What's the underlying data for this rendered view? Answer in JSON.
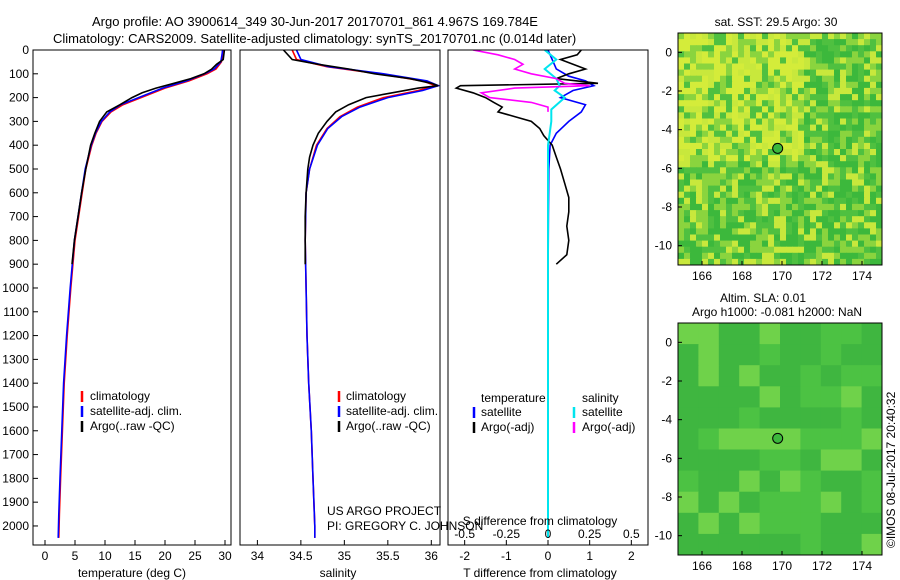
{
  "header": {
    "line1": "Argo profile: AO 3900614_349 30-Jun-2017 20170701_861 4.967S 169.784E",
    "line2": "Climatology: CARS2009. Satellite-adjusted climatology: synTS_20170701.nc (0.014d later)"
  },
  "colors": {
    "climatology": "#ff0000",
    "satellite": "#0000ff",
    "argo": "#000000",
    "argo_salinity": "#ff00ff",
    "satellite_salinity": "#00e5ee",
    "map_green": "#3cb83c",
    "map_yellow": "#c8e83c"
  },
  "chart_data": [
    {
      "type": "line",
      "panel": "temperature",
      "xlabel": "temperature (deg C)",
      "ylim": [
        2080,
        0
      ],
      "xlim": [
        -2,
        31
      ],
      "xticks": [
        "0",
        "5",
        "10",
        "15",
        "20",
        "25",
        "30"
      ],
      "yticks": [
        "0",
        "100",
        "200",
        "300",
        "400",
        "500",
        "600",
        "700",
        "800",
        "900",
        "1000",
        "1100",
        "1200",
        "1300",
        "1400",
        "1500",
        "1600",
        "1700",
        "1800",
        "1900",
        "2000"
      ],
      "legend": [
        "climatology",
        "satellite-adj. clim.",
        "Argo(..raw -QC)"
      ],
      "series": [
        {
          "name": "climatology",
          "depth": [
            0,
            20,
            50,
            80,
            100,
            130,
            160,
            200,
            230,
            260,
            300,
            350,
            400,
            500,
            600,
            700,
            800,
            1000,
            1200,
            1400,
            1600,
            1800,
            1950,
            2050
          ],
          "values": [
            29.6,
            29.6,
            29.4,
            28.5,
            27,
            24,
            20,
            16,
            13,
            11,
            9.5,
            8.5,
            7.8,
            6.8,
            6.2,
            5.6,
            5.0,
            4.3,
            3.7,
            3.2,
            2.9,
            2.6,
            2.4,
            2.3
          ]
        },
        {
          "name": "satellite-adj. clim.",
          "depth": [
            0,
            20,
            50,
            80,
            100,
            130,
            160,
            200,
            230,
            260,
            300,
            350,
            400,
            500,
            600,
            700,
            800,
            1000,
            1200,
            1400,
            1600,
            1800,
            1950,
            2050
          ],
          "values": [
            29.6,
            29.5,
            29.3,
            28.2,
            26.6,
            23.6,
            19.6,
            15.6,
            12.6,
            10.8,
            9.4,
            8.4,
            7.7,
            6.7,
            6.1,
            5.5,
            4.9,
            4.2,
            3.6,
            3.1,
            2.8,
            2.5,
            2.3,
            2.2
          ]
        },
        {
          "name": "Argo(..raw -QC)",
          "depth": [
            0,
            20,
            40,
            60,
            80,
            100,
            120,
            140,
            160,
            180,
            200,
            230,
            260,
            300,
            350,
            400,
            450,
            500,
            600,
            700,
            800,
            900
          ],
          "values": [
            29.9,
            29.8,
            29.7,
            28.6,
            27.8,
            26.5,
            24.3,
            21.5,
            18.5,
            16.2,
            14.5,
            12.5,
            10.3,
            9.1,
            8.3,
            7.6,
            7.2,
            6.8,
            6.1,
            5.5,
            4.9,
            4.5
          ]
        }
      ]
    },
    {
      "type": "line",
      "panel": "salinity",
      "xlabel": "salinity",
      "ylim": [
        2080,
        0
      ],
      "xlim": [
        33.8,
        36.1
      ],
      "xticks": [
        "34",
        "34.5",
        "35",
        "35.5",
        "36"
      ],
      "legend": [
        "climatology",
        "satellite-adj. clim.",
        "Argo(..raw -QC)"
      ],
      "annotation": [
        "US ARGO PROJECT",
        "PI: GREGORY C. JOHNSON"
      ],
      "series": [
        {
          "name": "climatology",
          "depth": [
            0,
            40,
            70,
            100,
            130,
            150,
            170,
            200,
            240,
            280,
            330,
            400,
            500,
            600,
            800,
            1000,
            1200,
            1400,
            1600,
            1800,
            2000,
            2050
          ],
          "values": [
            34.4,
            34.45,
            34.8,
            35.4,
            35.9,
            36.05,
            35.85,
            35.45,
            35.15,
            34.95,
            34.8,
            34.68,
            34.6,
            34.56,
            34.55,
            34.56,
            34.57,
            34.59,
            34.62,
            34.64,
            34.66,
            34.66
          ]
        },
        {
          "name": "satellite-adj. clim.",
          "depth": [
            0,
            40,
            70,
            100,
            130,
            150,
            170,
            200,
            240,
            280,
            330,
            400,
            500,
            600,
            800,
            1000,
            1200,
            1400,
            1600,
            1800,
            2000,
            2050
          ],
          "values": [
            34.45,
            34.5,
            34.82,
            35.45,
            35.95,
            36.08,
            35.9,
            35.5,
            35.18,
            34.97,
            34.81,
            34.69,
            34.6,
            34.56,
            34.55,
            34.56,
            34.57,
            34.59,
            34.62,
            34.64,
            34.66,
            34.66
          ]
        },
        {
          "name": "Argo(..raw -QC)",
          "depth": [
            0,
            40,
            60,
            80,
            100,
            120,
            140,
            150,
            160,
            180,
            200,
            230,
            260,
            300,
            350,
            400,
            450,
            500,
            600,
            700,
            800,
            900
          ],
          "values": [
            34.3,
            34.4,
            34.7,
            35.05,
            35.35,
            35.75,
            36.0,
            36.08,
            35.85,
            35.55,
            35.25,
            35.05,
            34.9,
            34.8,
            34.7,
            34.64,
            34.6,
            34.58,
            34.56,
            34.55,
            34.55,
            34.55
          ]
        }
      ]
    },
    {
      "type": "line",
      "panel": "differences",
      "xlabel": "T difference from climatology",
      "xlabel_top": "S difference from climatology",
      "ylim": [
        2080,
        0
      ],
      "xlim": [
        -2.4,
        2.4
      ],
      "xticks": [
        "-2",
        "-1",
        "0",
        "1",
        "2"
      ],
      "xticks_top": [
        "-0.5",
        "-0.25",
        "0",
        "0.25",
        "0.5"
      ],
      "legend": {
        "temperature": [
          "satellite",
          "Argo(-adj)"
        ],
        "salinity": [
          "satellite",
          "Argo(-adj)"
        ]
      },
      "legend_titles": [
        "temperature",
        "salinity"
      ],
      "series": [
        {
          "name": "temperature satellite",
          "depth": [
            0,
            40,
            80,
            110,
            130,
            150,
            170,
            200,
            230,
            260,
            300,
            350,
            400,
            500,
            700,
            1000,
            1300,
            1600,
            2050
          ],
          "values": [
            0,
            0.1,
            0.2,
            0.5,
            0.9,
            1.1,
            0.6,
            0.3,
            0.9,
            0.8,
            0.5,
            0.2,
            0.05,
            0.02,
            0.01,
            0,
            0,
            0,
            0
          ]
        },
        {
          "name": "temperature Argo(-adj)",
          "depth": [
            0,
            20,
            40,
            60,
            80,
            100,
            120,
            140,
            150,
            160,
            180,
            200,
            220,
            240,
            260,
            280,
            300,
            330,
            360,
            400,
            450,
            500,
            560,
            620,
            680,
            740,
            800,
            860,
            900
          ],
          "values": [
            0.8,
            0.7,
            0.3,
            0.6,
            0.9,
            0.5,
            0.2,
            1.2,
            -2.1,
            -2.2,
            -1.8,
            -1.5,
            -1.3,
            -1.1,
            -1.2,
            -0.8,
            -0.4,
            -0.2,
            -0.1,
            0.1,
            0.2,
            0.3,
            0.4,
            0.5,
            0.5,
            0.45,
            0.5,
            0.45,
            0.2
          ]
        },
        {
          "name": "salinity satellite",
          "depth": [
            0,
            40,
            80,
            120,
            150,
            170,
            200,
            250,
            300,
            350,
            400,
            600,
            900,
            1200,
            1500,
            2050
          ],
          "values": [
            -0.02,
            0.05,
            -0.02,
            0.05,
            0.07,
            0.04,
            0.1,
            0.02,
            0.02,
            0.01,
            0,
            0,
            0,
            0,
            0,
            0
          ]
        },
        {
          "name": "salinity Argo(-adj)",
          "depth": [
            0,
            20,
            40,
            60,
            80,
            100,
            120,
            140,
            150,
            160,
            180,
            200,
            220,
            240,
            260
          ],
          "values": [
            -0.45,
            -0.3,
            -0.2,
            -0.15,
            -0.2,
            -0.1,
            0.05,
            0.1,
            0.25,
            -0.2,
            -0.4,
            -0.35,
            -0.1,
            0,
            0
          ]
        }
      ]
    },
    {
      "type": "heatmap",
      "panel": "sst-map",
      "title": "sat. SST: 29.5 Argo: 30",
      "xticks": [
        "166",
        "168",
        "170",
        "172",
        "174"
      ],
      "yticks": [
        "0",
        "-2",
        "-4",
        "-6",
        "-8",
        "-10"
      ],
      "xlim": [
        164.8,
        175
      ],
      "ylim": [
        -11,
        1
      ],
      "marker": {
        "lon": 169.784,
        "lat": -4.967
      }
    },
    {
      "type": "heatmap",
      "panel": "sla-map",
      "title": "Altim. SLA: 0.01",
      "subtitle": "Argo h1000: -0.081 h2000: NaN",
      "xticks": [
        "166",
        "168",
        "170",
        "172",
        "174"
      ],
      "yticks": [
        "0",
        "-2",
        "-4",
        "-6",
        "-8",
        "-10"
      ],
      "xlim": [
        164.8,
        175
      ],
      "ylim": [
        -11,
        1
      ],
      "marker": {
        "lon": 169.784,
        "lat": -4.967
      }
    }
  ],
  "footer": {
    "credit": "©IMOS 08-Jul-2017 20:40:32"
  }
}
